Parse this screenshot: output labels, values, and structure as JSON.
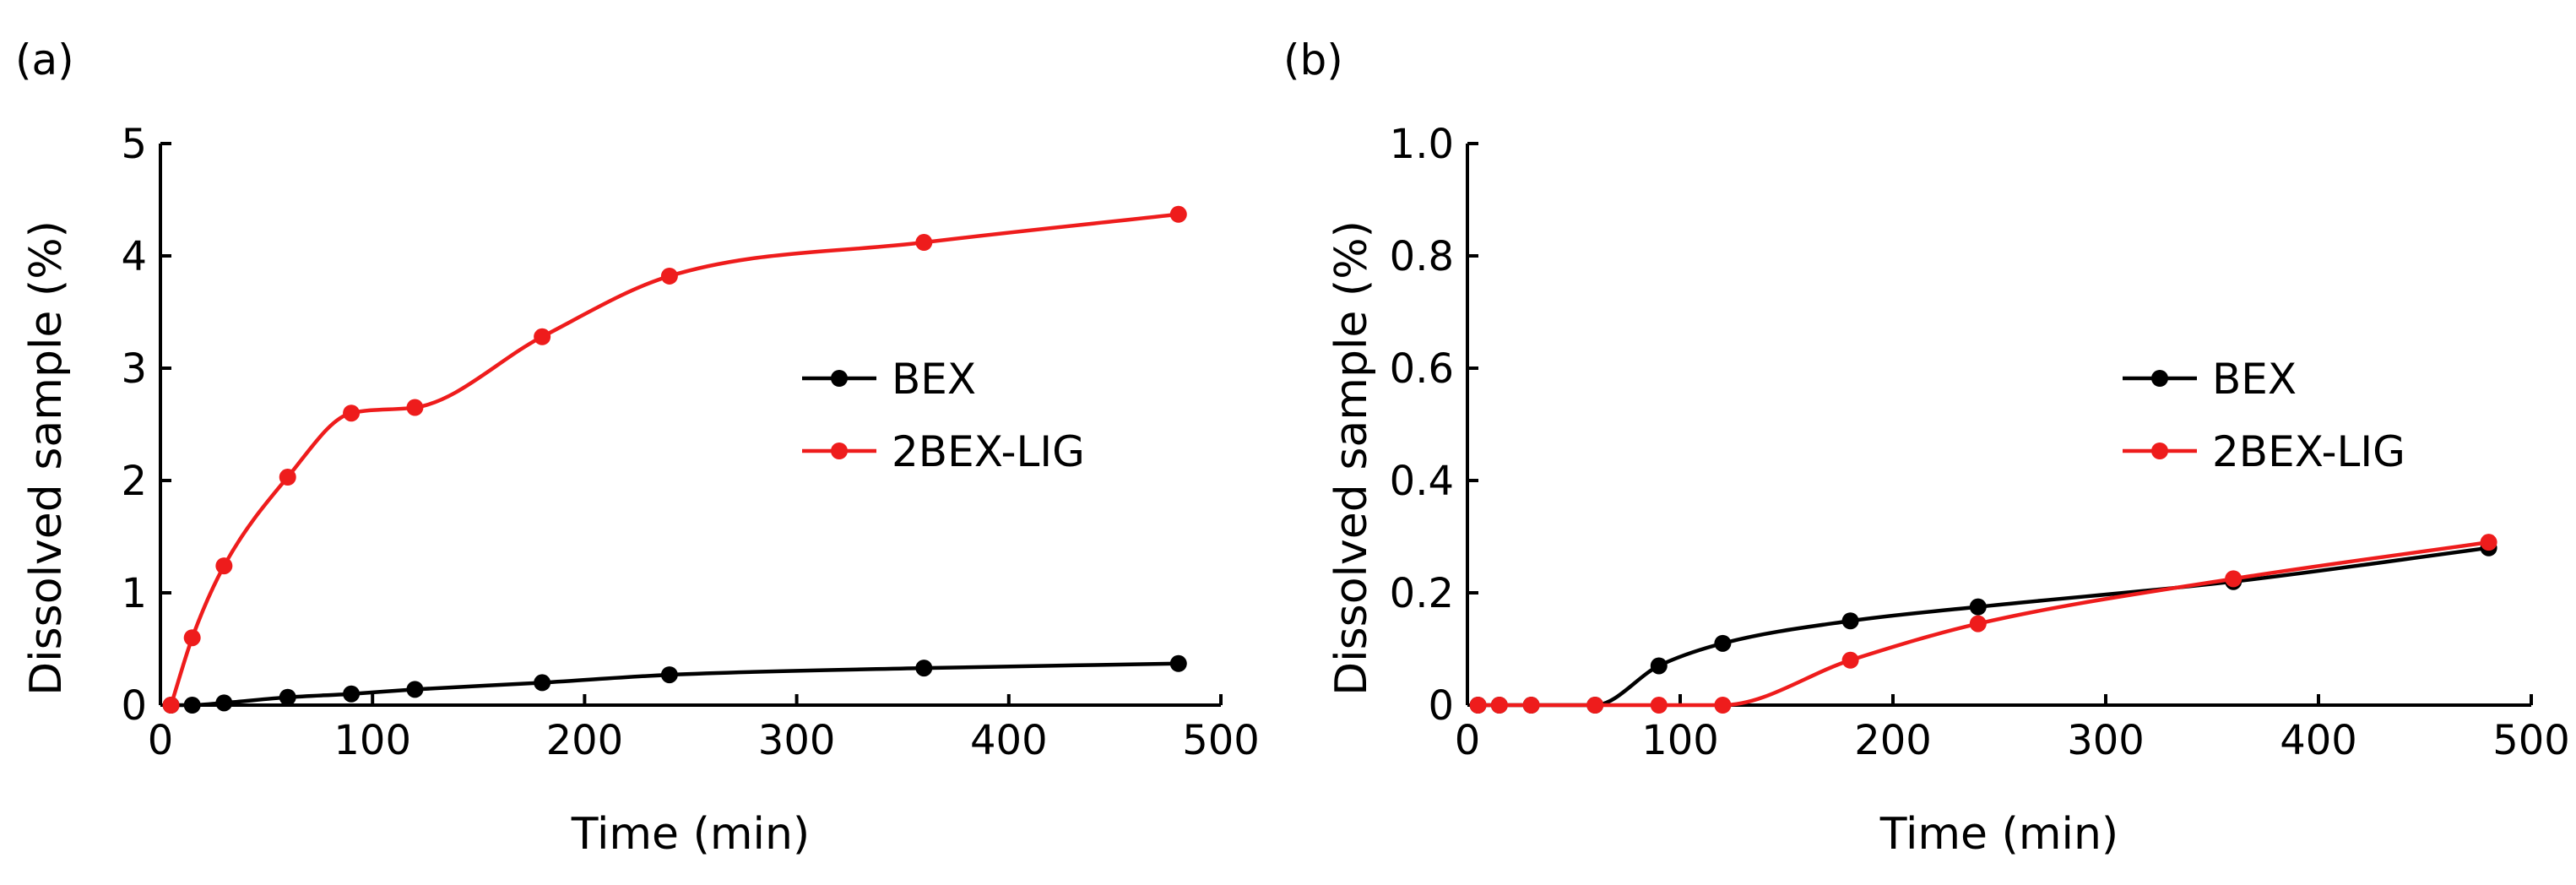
{
  "chart_data": [
    {
      "panel_label": "(a)",
      "type": "line",
      "xlabel": "Time (min)",
      "ylabel": "Dissolved sample (%)",
      "xlim": [
        0,
        500
      ],
      "ylim": [
        0,
        5
      ],
      "xticks": [
        0,
        100,
        200,
        300,
        400,
        500
      ],
      "yticks": [
        0,
        1,
        2,
        3,
        4,
        5
      ],
      "ytick_labels": [
        "0",
        "1",
        "2",
        "3",
        "4",
        "5"
      ],
      "legend_position": "right-center",
      "series": [
        {
          "name": "BEX",
          "color": "#000000",
          "x": [
            5,
            15,
            30,
            60,
            90,
            120,
            180,
            240,
            360,
            480
          ],
          "y": [
            0,
            0,
            0.02,
            0.07,
            0.1,
            0.14,
            0.2,
            0.27,
            0.33,
            0.37
          ]
        },
        {
          "name": "2BEX-LIG",
          "color": "#ee1c1c",
          "x": [
            5,
            15,
            30,
            60,
            90,
            120,
            180,
            240,
            360,
            480
          ],
          "y": [
            0,
            0.6,
            1.24,
            2.03,
            2.6,
            2.65,
            3.28,
            3.82,
            4.12,
            4.37
          ]
        }
      ]
    },
    {
      "panel_label": "(b)",
      "type": "line",
      "xlabel": "Time (min)",
      "ylabel": "Dissolved sample (%)",
      "xlim": [
        0,
        500
      ],
      "ylim": [
        0,
        1.0
      ],
      "xticks": [
        0,
        100,
        200,
        300,
        400,
        500
      ],
      "yticks": [
        0,
        0.2,
        0.4,
        0.6,
        0.8,
        1.0
      ],
      "ytick_labels": [
        "0",
        "0.2",
        "0.4",
        "0.6",
        "0.8",
        "1.0"
      ],
      "legend_position": "right-center",
      "series": [
        {
          "name": "BEX",
          "color": "#000000",
          "x": [
            5,
            15,
            30,
            60,
            90,
            120,
            180,
            240,
            360,
            480
          ],
          "y": [
            0,
            0,
            0,
            0,
            0.07,
            0.11,
            0.15,
            0.175,
            0.22,
            0.28
          ]
        },
        {
          "name": "2BEX-LIG",
          "color": "#ee1c1c",
          "x": [
            5,
            15,
            30,
            60,
            90,
            120,
            180,
            240,
            360,
            480
          ],
          "y": [
            0,
            0,
            0,
            0,
            0,
            0,
            0.08,
            0.145,
            0.225,
            0.29
          ]
        }
      ]
    }
  ]
}
